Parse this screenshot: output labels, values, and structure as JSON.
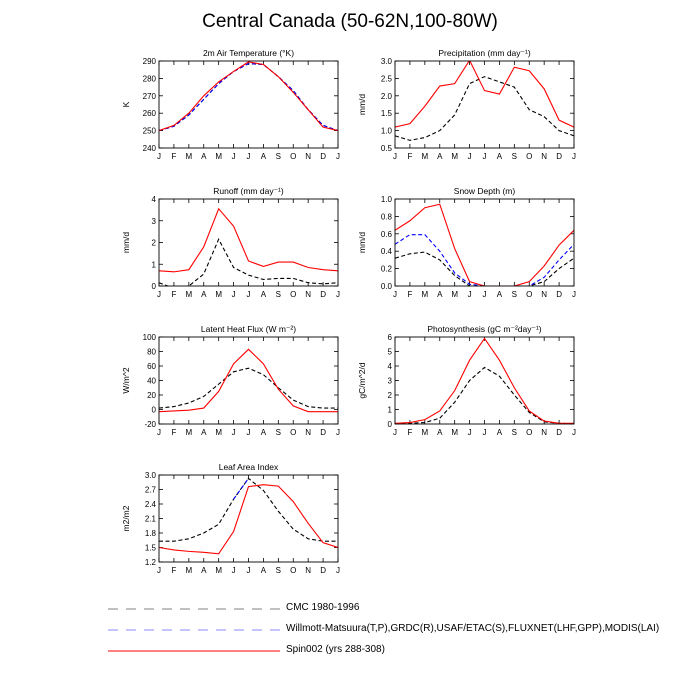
{
  "figure_title": "Central Canada (50-62N,100-80W)",
  "months": [
    "J",
    "F",
    "M",
    "A",
    "M",
    "J",
    "J",
    "A",
    "S",
    "O",
    "N",
    "D",
    "J"
  ],
  "colors": {
    "cmc": "#000000",
    "obs": "#0000ff",
    "model": "#ff0000"
  },
  "legend": [
    {
      "label": "CMC 1980-1996",
      "color": "#000000",
      "style": "dashed"
    },
    {
      "label": "Willmott-Matsuura(T,P),GRDC(R),USAF/ETAC(S),FLUXNET(LHF,GPP),MODIS(LAI)",
      "color": "#0000ff",
      "style": "dashed"
    },
    {
      "label": "Spin002 (yrs 288-308)",
      "color": "#ff0000",
      "style": "solid"
    }
  ],
  "chart_data": [
    {
      "type": "line",
      "title": "2m Air Temperature (°K)",
      "ylabel": "K",
      "ylim": [
        240,
        290
      ],
      "yticks": [
        240,
        250,
        260,
        270,
        280,
        290
      ],
      "series": [
        {
          "name": "CMC 1980-1996",
          "color": "#000000",
          "style": "dashed",
          "values": [
            250,
            252.5,
            259,
            268,
            277,
            284,
            288.5,
            288,
            281,
            273,
            262,
            253,
            250
          ]
        },
        {
          "name": "Willmott-Matsuura",
          "color": "#0000ff",
          "style": "dashed",
          "values": [
            250,
            252.5,
            259,
            268,
            277,
            284,
            288.5,
            288,
            281,
            273,
            262,
            253,
            250
          ]
        },
        {
          "name": "Spin002 (yrs 288-308)",
          "color": "#ff0000",
          "style": "solid",
          "values": [
            250,
            253,
            260,
            270,
            278,
            284,
            289.5,
            288,
            281,
            272,
            262,
            252,
            250
          ]
        }
      ]
    },
    {
      "type": "line",
      "title": "Precipitation (mm day⁻¹)",
      "ylabel": "mm/d",
      "ylim": [
        0.5,
        3.0
      ],
      "yticks": [
        0.5,
        1.0,
        1.5,
        2.0,
        2.5,
        3.0
      ],
      "series": [
        {
          "name": "CMC 1980-1996",
          "color": "#000000",
          "style": "dashed",
          "values": [
            0.85,
            0.72,
            0.8,
            1.0,
            1.45,
            2.35,
            2.55,
            2.4,
            2.25,
            1.6,
            1.4,
            1.0,
            0.85
          ]
        },
        {
          "name": "Spin002 (yrs 288-308)",
          "color": "#ff0000",
          "style": "solid",
          "values": [
            1.1,
            1.2,
            1.7,
            2.28,
            2.35,
            3.02,
            2.15,
            2.05,
            2.82,
            2.72,
            2.2,
            1.3,
            1.1
          ]
        }
      ]
    },
    {
      "type": "line",
      "title": "Runoff (mm day⁻¹)",
      "ylabel": "mm/d",
      "ylim": [
        0,
        4.0
      ],
      "yticks": [
        0,
        1.0,
        2.0,
        3.0,
        4.0
      ],
      "series": [
        {
          "name": "CMC 1980-1996",
          "color": "#000000",
          "style": "dashed",
          "values": [
            0.15,
            -0.1,
            0.0,
            0.55,
            2.15,
            0.85,
            0.5,
            0.3,
            0.35,
            0.35,
            0.15,
            0.1,
            0.15
          ]
        },
        {
          "name": "Spin002 (yrs 288-308)",
          "color": "#ff0000",
          "style": "solid",
          "values": [
            0.7,
            0.65,
            0.75,
            1.8,
            3.55,
            2.75,
            1.15,
            0.9,
            1.1,
            1.1,
            0.85,
            0.75,
            0.7
          ]
        }
      ]
    },
    {
      "type": "line",
      "title": "Snow Depth (m)",
      "ylabel": "mm/d",
      "ylim": [
        0,
        1.0
      ],
      "yticks": [
        0,
        0.2,
        0.4,
        0.6,
        0.8,
        1.0
      ],
      "series": [
        {
          "name": "CMC 1980-1996",
          "color": "#000000",
          "style": "dashed",
          "values": [
            0.32,
            0.37,
            0.39,
            0.3,
            0.12,
            0.0,
            0.0,
            0.0,
            0.0,
            0.0,
            0.05,
            0.2,
            0.32
          ]
        },
        {
          "name": "Willmott-Matsuura",
          "color": "#0000ff",
          "style": "dashed",
          "values": [
            0.48,
            0.59,
            0.59,
            0.4,
            0.15,
            0.02,
            0.0,
            0.0,
            0.0,
            0.0,
            0.1,
            0.3,
            0.48
          ]
        },
        {
          "name": "Spin002 (yrs 288-308)",
          "color": "#ff0000",
          "style": "solid",
          "values": [
            0.64,
            0.75,
            0.9,
            0.94,
            0.43,
            0.05,
            0.0,
            0.0,
            0.0,
            0.05,
            0.23,
            0.47,
            0.64
          ]
        }
      ]
    },
    {
      "type": "line",
      "title": "Latent Heat Flux (W m⁻²)",
      "ylabel": "W/m^2",
      "ylim": [
        -20,
        100
      ],
      "yticks": [
        -20,
        0,
        20,
        40,
        60,
        80,
        100
      ],
      "series": [
        {
          "name": "CMC 1980-1996",
          "color": "#000000",
          "style": "dashed",
          "values": [
            2,
            4,
            9,
            18,
            35,
            52,
            57,
            48,
            30,
            13,
            4,
            2,
            2
          ]
        },
        {
          "name": "Spin002 (yrs 288-308)",
          "color": "#ff0000",
          "style": "solid",
          "values": [
            -3,
            -2,
            -1,
            2,
            25,
            63,
            83,
            63,
            28,
            5,
            -3,
            -3,
            -3
          ]
        }
      ]
    },
    {
      "type": "line",
      "title": "Photosynthesis (gC m⁻²day⁻¹)",
      "ylabel": "gC/m^2/d",
      "ylim": [
        0,
        6.0
      ],
      "yticks": [
        0,
        1.0,
        2.0,
        3.0,
        4.0,
        5.0,
        6.0
      ],
      "series": [
        {
          "name": "CMC 1980-1996",
          "color": "#000000",
          "style": "dashed",
          "values": [
            0.0,
            0.05,
            0.1,
            0.4,
            1.5,
            3.0,
            3.9,
            3.3,
            2.0,
            0.8,
            0.15,
            0.05,
            0.0
          ]
        },
        {
          "name": "Spin002 (yrs 288-308)",
          "color": "#ff0000",
          "style": "solid",
          "values": [
            0.05,
            0.1,
            0.3,
            0.9,
            2.3,
            4.4,
            5.9,
            4.4,
            2.5,
            0.9,
            0.2,
            0.05,
            0.05
          ]
        }
      ]
    },
    {
      "type": "line",
      "title": "Leaf Area Index",
      "ylabel": "m2/m2",
      "ylim": [
        1.2,
        3.0
      ],
      "yticks": [
        1.2,
        1.5,
        1.8,
        2.1,
        2.4,
        2.7,
        3.0
      ],
      "series": [
        {
          "name": "CMC 1980-1996",
          "color": "#000000",
          "style": "dashed",
          "values": [
            1.63,
            1.63,
            1.68,
            1.8,
            1.98,
            2.5,
            2.93,
            2.68,
            2.25,
            1.88,
            1.68,
            1.63,
            1.63
          ]
        },
        {
          "name": "Willmott-Matsuura",
          "color": "#0000ff",
          "style": "dashed",
          "values": [
            null,
            null,
            null,
            null,
            null,
            2.5,
            2.93,
            null,
            null,
            null,
            null,
            null,
            null
          ]
        },
        {
          "name": "Spin002 (yrs 288-308)",
          "color": "#ff0000",
          "style": "solid",
          "values": [
            1.5,
            1.45,
            1.42,
            1.4,
            1.37,
            1.83,
            2.76,
            2.8,
            2.77,
            2.45,
            2.0,
            1.6,
            1.5
          ]
        }
      ]
    }
  ]
}
